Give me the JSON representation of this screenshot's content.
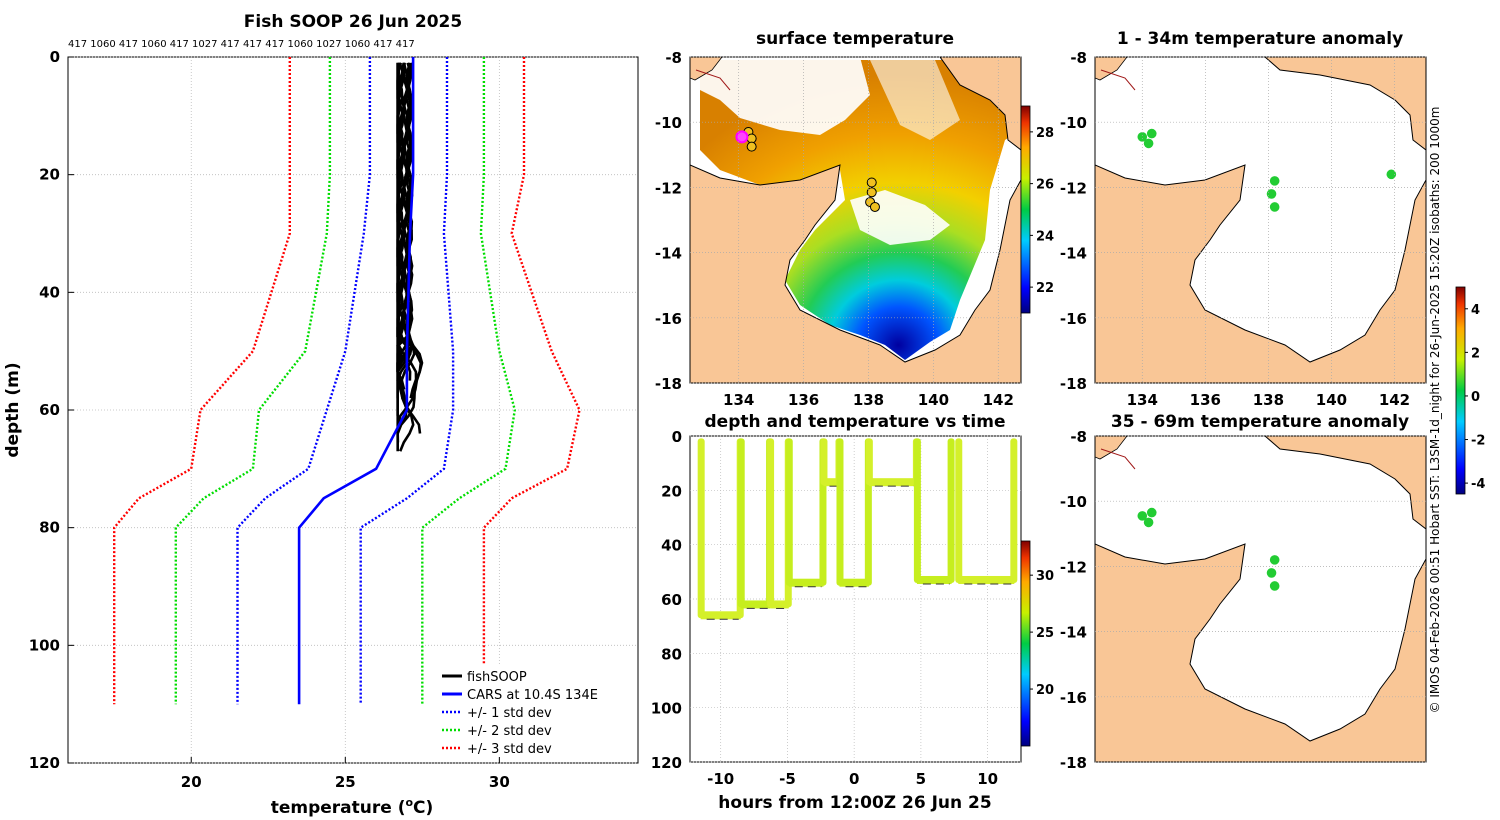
{
  "profile": {
    "title": "Fish SOOP 26 Jun 2025",
    "top_labels": "417 1060 417 1060 417 1027 417 417 417 1060 1027 1060 417 417",
    "xlabel_main": "temperature (",
    "xlabel_sup": "o",
    "xlabel_end": "C)",
    "ylabel": "depth (m)",
    "xticks": [
      "20",
      "25",
      "30"
    ],
    "yticks": [
      "0",
      "20",
      "40",
      "60",
      "80",
      "100",
      "120"
    ],
    "legend": [
      {
        "label": "fishSOOP",
        "color": "#000000",
        "style": "solid"
      },
      {
        "label": "CARS at 10.4S 134E",
        "color": "#0000ff",
        "style": "solid"
      },
      {
        "label": "+/- 1 std dev",
        "color": "#0000ff",
        "style": "dotted"
      },
      {
        "label": "+/- 2 std dev",
        "color": "#00dd00",
        "style": "dotted"
      },
      {
        "label": "+/- 3 std dev",
        "color": "#ff0000",
        "style": "dotted"
      }
    ]
  },
  "sst_map": {
    "title": "surface temperature",
    "xticks": [
      "134",
      "136",
      "138",
      "140",
      "142"
    ],
    "yticks": [
      "-8",
      "-10",
      "-12",
      "-14",
      "-16",
      "-18"
    ],
    "cbar_ticks": [
      "22",
      "24",
      "26",
      "28"
    ]
  },
  "timeseries": {
    "title": "depth and temperature vs time",
    "xlabel": "hours from 12:00Z 26 Jun 25",
    "xticks": [
      "-10",
      "-5",
      "0",
      "5",
      "10"
    ],
    "yticks": [
      "0",
      "20",
      "40",
      "60",
      "80",
      "100",
      "120"
    ],
    "cbar_ticks": [
      "20",
      "25",
      "30"
    ]
  },
  "anom_map_1": {
    "title": "1 - 34m temperature anomaly",
    "xticks": [
      "134",
      "136",
      "138",
      "140",
      "142"
    ],
    "yticks": [
      "-8",
      "-10",
      "-12",
      "-14",
      "-16",
      "-18"
    ]
  },
  "anom_map_2": {
    "title": "35 - 69m temperature anomaly",
    "yticks": [
      "-8",
      "-10",
      "-12",
      "-14",
      "-16",
      "-18"
    ]
  },
  "anom_cbar": {
    "ticks": [
      "4",
      "2",
      "0",
      "-2",
      "-4"
    ]
  },
  "side_credit": "© IMOS 04-Feb-2026 00:51 Hobart SST: L3SM-1d_night for 26-Jun-2025 15:20Z isobaths: 200  1000m",
  "chart_data": [
    {
      "type": "line",
      "title": "Fish SOOP 26 Jun 2025",
      "xlabel": "temperature (oC)",
      "ylabel": "depth (m)",
      "xlim": [
        16,
        34.5
      ],
      "ylim": [
        120,
        0
      ],
      "cars_reference": {
        "label": "CARS at 10.4S 134E",
        "temperature": [
          27.2,
          27.2,
          27.1,
          27.0,
          27.0,
          26.0,
          24.3,
          23.5,
          23.5
        ],
        "depth": [
          0,
          20,
          30,
          50,
          60,
          70,
          75,
          80,
          110
        ]
      },
      "std_bands": [
        {
          "label": "+/- 1 std dev",
          "minus": [
            25.8,
            25.8,
            25.6,
            25.0,
            24.4,
            23.8,
            22.4,
            21.5,
            21.5
          ],
          "plus": [
            28.3,
            28.3,
            28.2,
            28.5,
            28.5,
            28.2,
            27.0,
            25.5,
            25.5
          ],
          "depth": [
            0,
            20,
            30,
            50,
            60,
            70,
            75,
            80,
            110
          ]
        },
        {
          "label": "+/- 2 std dev",
          "minus": [
            24.5,
            24.5,
            24.4,
            23.7,
            22.2,
            22.0,
            20.4,
            19.5,
            19.5
          ],
          "plus": [
            29.5,
            29.5,
            29.4,
            30.0,
            30.5,
            30.2,
            28.7,
            27.5,
            27.5
          ],
          "depth": [
            0,
            20,
            30,
            50,
            60,
            70,
            75,
            80,
            110
          ]
        },
        {
          "label": "+/- 3 std dev",
          "minus": [
            23.2,
            23.2,
            23.2,
            22.0,
            20.3,
            20.0,
            18.3,
            17.5,
            17.5
          ],
          "plus": [
            30.8,
            30.8,
            30.4,
            31.7,
            32.6,
            32.2,
            30.4,
            29.5,
            29.5
          ],
          "depth": [
            0,
            20,
            30,
            50,
            60,
            70,
            75,
            80,
            110
          ]
        }
      ],
      "fishsoop_profiles": [
        {
          "label": "fishSOOP",
          "temperature_range": [
            26.7,
            27.6
          ],
          "depth_range": [
            1,
            69
          ]
        }
      ]
    },
    {
      "type": "heatmap",
      "title": "surface temperature",
      "xlim": [
        132.5,
        142.7
      ],
      "ylim": [
        -18,
        -8
      ],
      "colorbar_range": [
        21,
        29
      ],
      "observation_points": [
        {
          "lon": 134.3,
          "lat": -10.3
        },
        {
          "lon": 134.4,
          "lat": -10.5
        },
        {
          "lon": 134.4,
          "lat": -10.75
        },
        {
          "lon": 134.1,
          "lat": -10.45,
          "highlight": true
        },
        {
          "lon": 138.1,
          "lat": -11.85
        },
        {
          "lon": 138.1,
          "lat": -12.15
        },
        {
          "lon": 138.05,
          "lat": -12.45
        },
        {
          "lon": 138.2,
          "lat": -12.6
        }
      ]
    },
    {
      "type": "scatter",
      "title": "depth and temperature vs time",
      "xlabel": "hours from 12:00Z 26 Jun 25",
      "xlim": [
        -12.3,
        12.5
      ],
      "ylim": [
        120,
        0
      ],
      "colorbar_range": [
        15,
        33
      ],
      "deployments": [
        {
          "start": -11.5,
          "end": -8.5,
          "bottom_depth": 66
        },
        {
          "start": -8.5,
          "end": -6.3,
          "bottom_depth": 62
        },
        {
          "start": -6.3,
          "end": -4.9,
          "bottom_depth": 62
        },
        {
          "start": -4.9,
          "end": -2.3,
          "bottom_depth": 54
        },
        {
          "start": -2.3,
          "end": -1.1,
          "bottom_depth": 17
        },
        {
          "start": -1.1,
          "end": 1.1,
          "bottom_depth": 54
        },
        {
          "start": 1.1,
          "end": 4.7,
          "bottom_depth": 17
        },
        {
          "start": 4.7,
          "end": 7.3,
          "bottom_depth": 53
        },
        {
          "start": 7.8,
          "end": 12.0,
          "bottom_depth": 53
        }
      ]
    },
    {
      "type": "scatter",
      "title": "1 - 34m temperature anomaly",
      "xlim": [
        132.5,
        143
      ],
      "ylim": [
        -18,
        -8
      ],
      "points": [
        {
          "lon": 134.0,
          "lat": -10.45,
          "anomaly": 0.5
        },
        {
          "lon": 134.3,
          "lat": -10.35,
          "anomaly": 0.5
        },
        {
          "lon": 134.2,
          "lat": -10.65,
          "anomaly": 0.5
        },
        {
          "lon": 138.2,
          "lat": -11.8,
          "anomaly": 0.5
        },
        {
          "lon": 138.1,
          "lat": -12.2,
          "anomaly": 0.5
        },
        {
          "lon": 138.2,
          "lat": -12.6,
          "anomaly": 0.5
        },
        {
          "lon": 141.9,
          "lat": -11.6,
          "anomaly": 0.5
        }
      ]
    },
    {
      "type": "scatter",
      "title": "35 - 69m temperature anomaly",
      "xlim": [
        132.5,
        143
      ],
      "ylim": [
        -18,
        -8
      ],
      "points": [
        {
          "lon": 134.0,
          "lat": -10.45,
          "anomaly": 0.5
        },
        {
          "lon": 134.3,
          "lat": -10.35,
          "anomaly": 0.5
        },
        {
          "lon": 134.2,
          "lat": -10.65,
          "anomaly": 0.5
        },
        {
          "lon": 138.2,
          "lat": -11.8,
          "anomaly": 0.5
        },
        {
          "lon": 138.1,
          "lat": -12.2,
          "anomaly": 0.5
        },
        {
          "lon": 138.2,
          "lat": -12.6,
          "anomaly": 0.5
        }
      ],
      "colorbar_range": [
        -4.5,
        5
      ]
    }
  ]
}
